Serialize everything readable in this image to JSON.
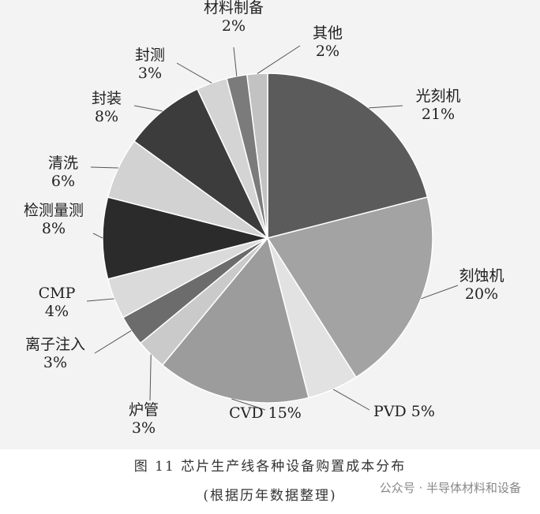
{
  "chart_data": {
    "type": "pie",
    "categories": [
      "光刻机",
      "刻蚀机",
      "PVD",
      "CVD",
      "炉管",
      "离子注入",
      "CMP",
      "检测量测",
      "清洗",
      "封装",
      "封测",
      "材料制备",
      "其他"
    ],
    "values": [
      21,
      20,
      5,
      15,
      3,
      3,
      4,
      8,
      6,
      8,
      3,
      2,
      2
    ],
    "value_labels": [
      "21%",
      "20%",
      "5%",
      "15%",
      "3%",
      "3%",
      "4%",
      "8%",
      "6%",
      "8%",
      "3%",
      "2%",
      "2%"
    ],
    "colors": [
      "#5b5b5b",
      "#a3a3a3",
      "#e2e2e2",
      "#9c9c9c",
      "#cacaca",
      "#6c6c6c",
      "#dadada",
      "#2b2b2b",
      "#d2d2d2",
      "#3c3c3c",
      "#d4d4d4",
      "#7b7b7b",
      "#c2c2c2"
    ],
    "caption": "图 11  芯片生产线各种设备购置成本分布",
    "subcaption": "(根据历年数据整理)",
    "watermark": "公众号 · 半导体材料和设备"
  }
}
